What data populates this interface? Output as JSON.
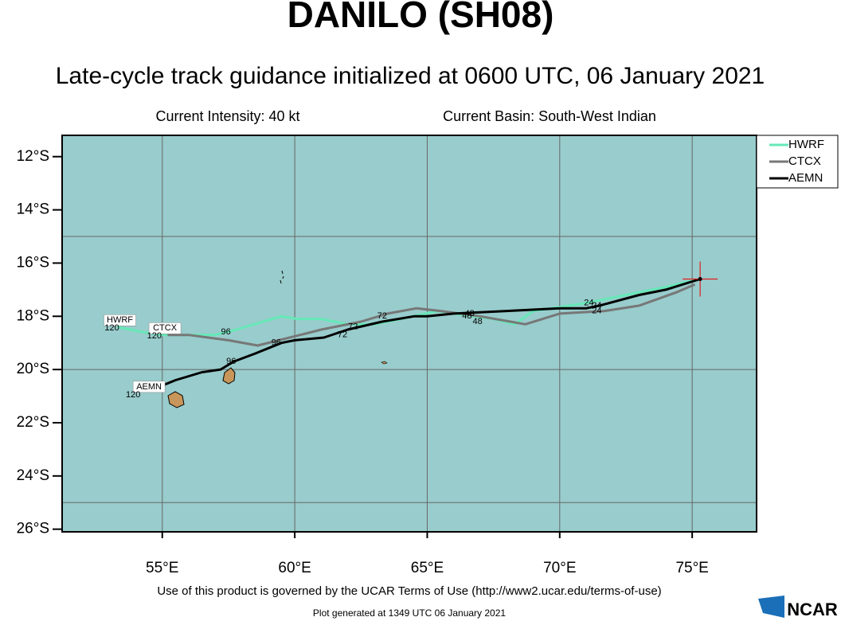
{
  "chart_data": {
    "type": "line",
    "title": "DANILO (SH08)",
    "subtitle": "Late-cycle track guidance initialized at 0600 UTC, 06 January 2021",
    "intensity": "Current Intensity: 40 kt",
    "basin": "Current Basin: South-West Indian",
    "xlim": [
      51.22,
      77.43
    ],
    "ylim": [
      -26.1,
      -11.2
    ],
    "xticks": [
      {
        "value": 55,
        "label": "55°E"
      },
      {
        "value": 60,
        "label": "60°E"
      },
      {
        "value": 65,
        "label": "65°E"
      },
      {
        "value": 70,
        "label": "70°E"
      },
      {
        "value": 75,
        "label": "75°E"
      }
    ],
    "yticks": [
      {
        "value": -12,
        "label": "12°S"
      },
      {
        "value": -14,
        "label": "14°S"
      },
      {
        "value": -16,
        "label": "16°S"
      },
      {
        "value": -18,
        "label": "18°S"
      },
      {
        "value": -20,
        "label": "20°S"
      },
      {
        "value": -22,
        "label": "22°S"
      },
      {
        "value": -24,
        "label": "24°S"
      },
      {
        "value": -26,
        "label": "26°S"
      }
    ],
    "ygrid": [
      -15,
      -20,
      -25
    ],
    "grid": true,
    "background": "#99cccc",
    "legend": "outside-right",
    "series": [
      {
        "name": "HWRF",
        "color": "#66e8b8",
        "x": [
          75.3,
          74.0,
          72.5,
          71.0,
          69.0,
          68.3,
          67.5,
          66.0,
          65.4,
          64.0,
          63.0,
          62.0,
          61.0,
          60.1,
          59.5,
          58.8,
          57.8,
          57.0,
          56.0,
          55.0,
          54.3,
          53.3
        ],
        "values": [
          -16.6,
          -16.9,
          -17.2,
          -17.5,
          -17.8,
          -18.3,
          -18.1,
          -17.9,
          -17.8,
          -18.1,
          -18.3,
          -18.3,
          -18.1,
          -18.1,
          -18.0,
          -18.2,
          -18.5,
          -18.7,
          -18.7,
          -18.7,
          -18.6,
          -18.4
        ]
      },
      {
        "name": "CTCX",
        "color": "#777777",
        "x": [
          75.1,
          74.4,
          73.0,
          71.7,
          70.0,
          68.7,
          67.0,
          65.5,
          64.6,
          63.5,
          62.5,
          61.0,
          60.2,
          58.6,
          57.5,
          56.0,
          55.2
        ],
        "values": [
          -16.8,
          -17.1,
          -17.6,
          -17.8,
          -17.9,
          -18.3,
          -18.0,
          -17.8,
          -17.7,
          -17.9,
          -18.2,
          -18.5,
          -18.7,
          -19.1,
          -18.9,
          -18.7,
          -18.7
        ]
      },
      {
        "name": "AEMN",
        "color": "#000000",
        "x": [
          75.3,
          74.0,
          73.0,
          71.5,
          71.0,
          70.0,
          68.0,
          66.0,
          65.0,
          64.5,
          63.3,
          62.0,
          61.1,
          60.0,
          59.5,
          58.5,
          57.7,
          57.2,
          56.5,
          55.5,
          55.0
        ],
        "values": [
          -16.6,
          -17.0,
          -17.2,
          -17.6,
          -17.7,
          -17.7,
          -17.8,
          -17.9,
          -18.0,
          -18.0,
          -18.2,
          -18.5,
          -18.8,
          -18.9,
          -19.0,
          -19.4,
          -19.7,
          -20.0,
          -20.1,
          -20.4,
          -20.6
        ]
      }
    ],
    "current_position": {
      "x": 75.3,
      "y": -16.6
    },
    "annotations": [
      {
        "text": "HWRF",
        "x": 53.4,
        "y": -18.15,
        "boxed": true
      },
      {
        "text": "120",
        "x": 53.1,
        "y": -18.45
      },
      {
        "text": "CTCX",
        "x": 55.1,
        "y": -18.45,
        "boxed": true
      },
      {
        "text": "120",
        "x": 54.7,
        "y": -18.75
      },
      {
        "text": "AEMN",
        "x": 54.5,
        "y": -20.65,
        "boxed": true
      },
      {
        "text": "120",
        "x": 53.9,
        "y": -20.95
      },
      {
        "text": "96",
        "x": 57.4,
        "y": -18.6
      },
      {
        "text": "96",
        "x": 59.3,
        "y": -19.0
      },
      {
        "text": "96",
        "x": 57.6,
        "y": -19.7
      },
      {
        "text": "72",
        "x": 62.2,
        "y": -18.4
      },
      {
        "text": "72",
        "x": 61.8,
        "y": -18.7
      },
      {
        "text": "72",
        "x": 63.3,
        "y": -18.0
      },
      {
        "text": "48",
        "x": 66.6,
        "y": -17.9
      },
      {
        "text": "48",
        "x": 66.5,
        "y": -18.0
      },
      {
        "text": "48",
        "x": 66.9,
        "y": -18.2
      },
      {
        "text": "24",
        "x": 71.1,
        "y": -17.5
      },
      {
        "text": "24",
        "x": 71.4,
        "y": -17.6
      },
      {
        "text": "24",
        "x": 71.4,
        "y": -17.8
      }
    ],
    "terms": "Use of this product is governed by the UCAR Terms of Use (http://www2.ucar.edu/terms-of-use)",
    "generated": "Plot generated at 1349 UTC   06 January 2021",
    "logo": "NCAR"
  }
}
